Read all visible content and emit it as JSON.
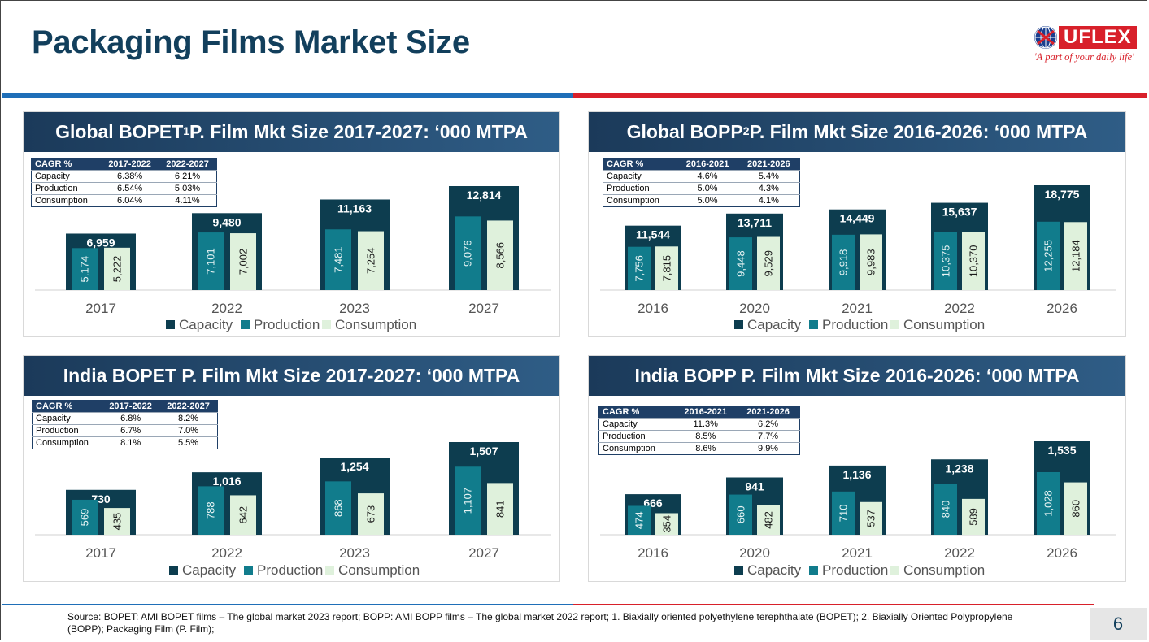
{
  "page": {
    "title": "Packaging Films Market Size",
    "logo_text": "UFLEX",
    "logo_tagline": "'A part of your daily life'",
    "page_number": "6",
    "footer": "Source: BOPET: AMI BOPET films – The global market 2023 report; BOPP: AMI BOPP films – The global market 2022 report; 1. Biaxially oriented polyethylene terephthalate (BOPET); 2. Biaxially Oriented Polypropylene  (BOPP); Packaging Film (P. Film);"
  },
  "colors": {
    "capacity": "#0d3d4f",
    "production": "#117c8c",
    "consumption": "#dff1dc",
    "header_dark": "#1b3a5a",
    "brand_red": "#d8202a",
    "brand_blue": "#1f6fb8"
  },
  "legend": [
    "Capacity",
    "Production",
    "Consumption"
  ],
  "panels": [
    {
      "title_main": "Global BOPET",
      "title_sup": "1",
      "title_rest": " P. Film Mkt Size 2017-2027: ‘000 MTPA",
      "cagr": {
        "header": [
          "CAGR %",
          "2017-2022",
          "2022-2027"
        ],
        "rows": [
          [
            "Capacity",
            "6.38%",
            "6.21%"
          ],
          [
            "Production",
            "6.54%",
            "5.03%"
          ],
          [
            "Consumption",
            "6.04%",
            "4.11%"
          ]
        ]
      }
    },
    {
      "title_main": "Global BOPP",
      "title_sup": "2",
      "title_rest": " P. Film Mkt Size 2016-2026: ‘000 MTPA",
      "cagr": {
        "header": [
          "CAGR %",
          "2016-2021",
          "2021-2026"
        ],
        "rows": [
          [
            "Capacity",
            "4.6%",
            "5.4%"
          ],
          [
            "Production",
            "5.0%",
            "4.3%"
          ],
          [
            "Consumption",
            "5.0%",
            "4.1%"
          ]
        ]
      }
    },
    {
      "title_main": "India BOPET P. Film Mkt Size 2017-2027: ‘000 MTPA",
      "title_sup": "",
      "title_rest": "",
      "cagr": {
        "header": [
          "CAGR %",
          "2017-2022",
          "2022-2027"
        ],
        "rows": [
          [
            "Capacity",
            "6.8%",
            "8.2%"
          ],
          [
            "Production",
            "6.7%",
            "7.0%"
          ],
          [
            "Consumption",
            "8.1%",
            "5.5%"
          ]
        ]
      }
    },
    {
      "title_main": "India BOPP P. Film Mkt Size 2016-2026: ‘000 MTPA",
      "title_sup": "",
      "title_rest": "",
      "cagr": {
        "header": [
          "CAGR %",
          "2016-2021",
          "2021-2026"
        ],
        "rows": [
          [
            "Capacity",
            "11.3%",
            "6.2%"
          ],
          [
            "Production",
            "8.5%",
            "7.7%"
          ],
          [
            "Consumption",
            "8.6%",
            "9.9%"
          ]
        ]
      }
    }
  ],
  "chart_data": [
    {
      "type": "bar",
      "title": "Global BOPET1 P. Film Mkt Size 2017-2027: ‘000 MTPA",
      "categories": [
        "2017",
        "2022",
        "2023",
        "2027"
      ],
      "series": [
        {
          "name": "Capacity",
          "values": [
            6959,
            9480,
            11163,
            12814
          ],
          "labels": [
            "6,959",
            "9,480",
            "11,163",
            "12,814"
          ]
        },
        {
          "name": "Production",
          "values": [
            5174,
            7101,
            7481,
            9076
          ],
          "labels": [
            "5,174",
            "7,101",
            "7,481",
            "9,076"
          ]
        },
        {
          "name": "Consumption",
          "values": [
            5222,
            7002,
            7254,
            8566
          ],
          "labels": [
            "5,222",
            "7,002",
            "7,254",
            "8,566"
          ]
        }
      ],
      "ylim": [
        0,
        12814
      ],
      "grid": false,
      "legend_position": "bottom"
    },
    {
      "type": "bar",
      "title": "Global BOPP2 P. Film Mkt Size 2016-2026: ‘000 MTPA",
      "categories": [
        "2016",
        "2020",
        "2021",
        "2022",
        "2026"
      ],
      "series": [
        {
          "name": "Capacity",
          "values": [
            11544,
            13711,
            14449,
            15637,
            18775
          ],
          "labels": [
            "11,544",
            "13,711",
            "14,449",
            "15,637",
            "18,775"
          ]
        },
        {
          "name": "Production",
          "values": [
            7756,
            9448,
            9918,
            10375,
            12255
          ],
          "labels": [
            "7,756",
            "9,448",
            "9,918",
            "10,375",
            "12,255"
          ]
        },
        {
          "name": "Consumption",
          "values": [
            7815,
            9529,
            9983,
            10370,
            12184
          ],
          "labels": [
            "7,815",
            "9,529",
            "9,983",
            "10,370",
            "12,184"
          ]
        }
      ],
      "ylim": [
        0,
        18775
      ],
      "grid": false,
      "legend_position": "bottom"
    },
    {
      "type": "bar",
      "title": "India BOPET P. Film Mkt Size 2017-2027: ‘000 MTPA",
      "categories": [
        "2017",
        "2022",
        "2023",
        "2027"
      ],
      "series": [
        {
          "name": "Capacity",
          "values": [
            730,
            1016,
            1254,
            1507
          ],
          "labels": [
            "730",
            "1,016",
            "1,254",
            "1,507"
          ]
        },
        {
          "name": "Production",
          "values": [
            569,
            788,
            868,
            1107
          ],
          "labels": [
            "569",
            "788",
            "868",
            "1,107"
          ]
        },
        {
          "name": "Consumption",
          "values": [
            435,
            642,
            673,
            841
          ],
          "labels": [
            "435",
            "642",
            "673",
            "841"
          ]
        }
      ],
      "ylim": [
        0,
        1507
      ],
      "grid": false,
      "legend_position": "bottom"
    },
    {
      "type": "bar",
      "title": "India BOPP P. Film Mkt Size 2016-2026: ‘000 MTPA",
      "categories": [
        "2016",
        "2020",
        "2021",
        "2022",
        "2026"
      ],
      "series": [
        {
          "name": "Capacity",
          "values": [
            666,
            941,
            1136,
            1238,
            1535
          ],
          "labels": [
            "666",
            "941",
            "1,136",
            "1,238",
            "1,535"
          ]
        },
        {
          "name": "Production",
          "values": [
            474,
            660,
            710,
            840,
            1028
          ],
          "labels": [
            "474",
            "660",
            "710",
            "840",
            "1,028"
          ]
        },
        {
          "name": "Consumption",
          "values": [
            354,
            482,
            537,
            589,
            860
          ],
          "labels": [
            "354",
            "482",
            "537",
            "589",
            "860"
          ]
        }
      ],
      "ylim": [
        0,
        1535
      ],
      "grid": false,
      "legend_position": "bottom"
    }
  ]
}
